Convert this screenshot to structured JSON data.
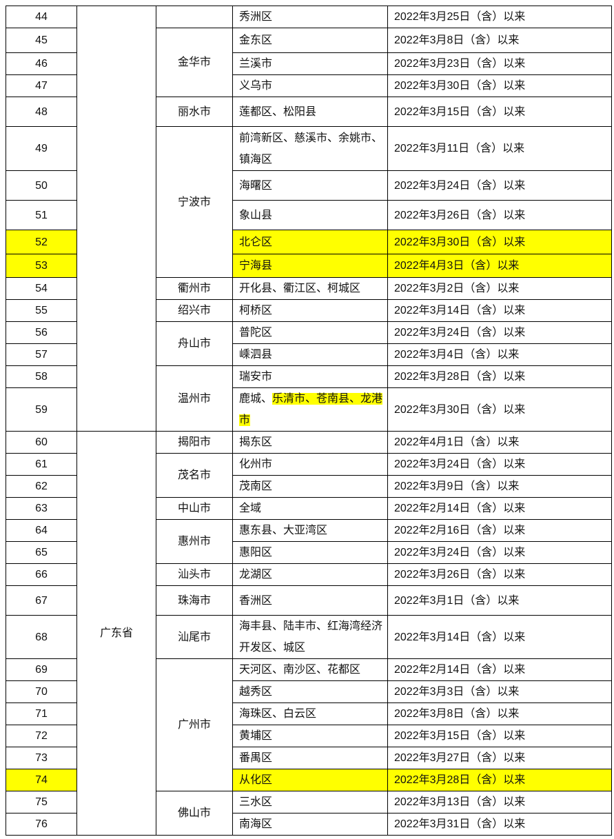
{
  "highlight_color": "#ffff00",
  "provinces": [
    {
      "name": "",
      "cities": [
        {
          "name": "",
          "rows": [
            {
              "no": "44",
              "district": "秀洲区",
              "date": "2022年3月25日（含）以来"
            }
          ]
        },
        {
          "name": "金华市",
          "rows": [
            {
              "no": "45",
              "district": "金东区",
              "date": "2022年3月8日（含）以来"
            },
            {
              "no": "46",
              "district": "兰溪市",
              "date": "2022年3月23日（含）以来"
            },
            {
              "no": "47",
              "district": "义乌市",
              "date": "2022年3月30日（含）以来"
            }
          ]
        },
        {
          "name": "丽水市",
          "rows": [
            {
              "no": "48",
              "district": "莲都区、松阳县",
              "date": "2022年3月15日（含）以来"
            }
          ]
        },
        {
          "name": "宁波市",
          "rows": [
            {
              "no": "49",
              "district": "前湾新区、慈溪市、余姚市、镇海区",
              "date": "2022年3月11日（含）以来"
            },
            {
              "no": "50",
              "district": "海曙区",
              "date": "2022年3月24日（含）以来"
            },
            {
              "no": "51",
              "district": "象山县",
              "date": "2022年3月26日（含）以来"
            },
            {
              "no": "52",
              "district": "北仑区",
              "date": "2022年3月30日（含）以来",
              "highlighted": true
            },
            {
              "no": "53",
              "district": "宁海县",
              "date": "2022年4月3日（含）以来",
              "highlighted": true
            }
          ]
        },
        {
          "name": "衢州市",
          "rows": [
            {
              "no": "54",
              "district": "开化县、衢江区、柯城区",
              "date": "2022年3月2日（含）以来"
            }
          ]
        },
        {
          "name": "绍兴市",
          "rows": [
            {
              "no": "55",
              "district": "柯桥区",
              "date": "2022年3月14日（含）以来"
            }
          ]
        },
        {
          "name": "舟山市",
          "rows": [
            {
              "no": "56",
              "district": "普陀区",
              "date": "2022年3月24日（含）以来"
            },
            {
              "no": "57",
              "district": "嵊泗县",
              "date": "2022年3月4日（含）以来"
            }
          ]
        },
        {
          "name": "温州市",
          "rows": [
            {
              "no": "58",
              "district": "瑞安市",
              "date": "2022年3月28日（含）以来"
            },
            {
              "no": "59",
              "district": "鹿城、",
              "district_highlighted": "乐清市、苍南县、龙港市",
              "date": "2022年3月30日（含）以来"
            }
          ]
        }
      ]
    },
    {
      "name": "广东省",
      "cities": [
        {
          "name": "揭阳市",
          "rows": [
            {
              "no": "60",
              "district": "揭东区",
              "date": "2022年4月1日（含）以来"
            }
          ]
        },
        {
          "name": "茂名市",
          "rows": [
            {
              "no": "61",
              "district": "化州市",
              "date": "2022年3月24日（含）以来"
            },
            {
              "no": "62",
              "district": "茂南区",
              "date": "2022年3月9日（含）以来"
            }
          ]
        },
        {
          "name": "中山市",
          "rows": [
            {
              "no": "63",
              "district": "全域",
              "date": "2022年2月14日（含）以来"
            }
          ]
        },
        {
          "name": "惠州市",
          "rows": [
            {
              "no": "64",
              "district": "惠东县、大亚湾区",
              "date": "2022年2月16日（含）以来"
            },
            {
              "no": "65",
              "district": "惠阳区",
              "date": "2022年3月24日（含）以来"
            }
          ]
        },
        {
          "name": "汕头市",
          "rows": [
            {
              "no": "66",
              "district": "龙湖区",
              "date": "2022年3月26日（含）以来"
            }
          ]
        },
        {
          "name": "珠海市",
          "rows": [
            {
              "no": "67",
              "district": "香洲区",
              "date": "2022年3月1日（含）以来"
            }
          ]
        },
        {
          "name": "汕尾市",
          "rows": [
            {
              "no": "68",
              "district": "海丰县、陆丰市、红海湾经济开发区、城区",
              "date": "2022年3月14日（含）以来"
            }
          ]
        },
        {
          "name": "广州市",
          "rows": [
            {
              "no": "69",
              "district": "天河区、南沙区、花都区",
              "date": "2022年2月14日（含）以来"
            },
            {
              "no": "70",
              "district": "越秀区",
              "date": "2022年3月3日（含）以来"
            },
            {
              "no": "71",
              "district": "海珠区、白云区",
              "date": "2022年3月8日（含）以来"
            },
            {
              "no": "72",
              "district": "黄埔区",
              "date": "2022年3月15日（含）以来"
            },
            {
              "no": "73",
              "district": "番禺区",
              "date": "2022年3月27日（含）以来"
            },
            {
              "no": "74",
              "district": "从化区",
              "date": "2022年3月28日（含）以来",
              "highlighted": true
            }
          ]
        },
        {
          "name": "佛山市",
          "rows": [
            {
              "no": "75",
              "district": "三水区",
              "date": "2022年3月13日（含）以来"
            },
            {
              "no": "76",
              "district": "南海区",
              "date": "2022年3月31日（含）以来"
            }
          ]
        }
      ]
    }
  ]
}
